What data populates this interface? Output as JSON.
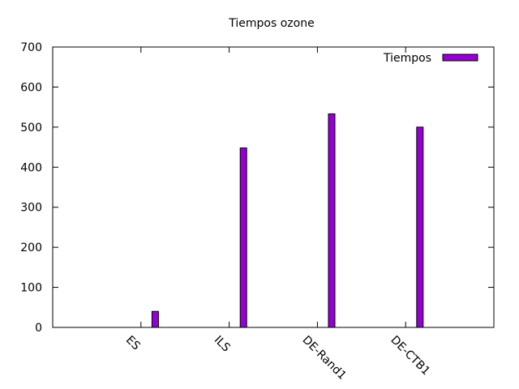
{
  "chart_data": {
    "type": "bar",
    "title": "Tiempos ozone",
    "xlabel": "",
    "ylabel": "",
    "categories": [
      "ES",
      "ILS",
      "DE-Rand1",
      "DE-CTB1"
    ],
    "series": [
      {
        "name": "Tiempos",
        "values": [
          40,
          448,
          533,
          500
        ],
        "color": "#9400d3"
      }
    ],
    "ylim": [
      0,
      700
    ],
    "yticks": [
      "0",
      "100",
      "200",
      "300",
      "400",
      "500",
      "600",
      "700"
    ],
    "grid": false,
    "legend": "top-right"
  }
}
